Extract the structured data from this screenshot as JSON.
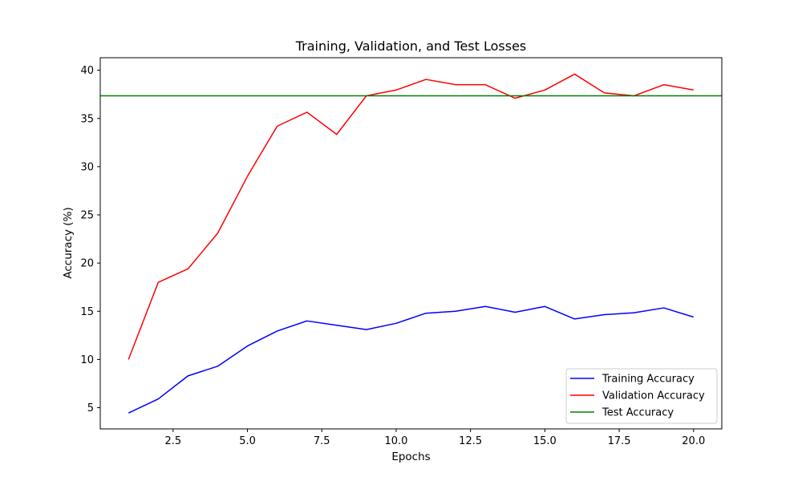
{
  "chart_data": {
    "type": "line",
    "title": "Training, Validation, and Test Losses",
    "xlabel": "Epochs",
    "ylabel": "Accuracy (%)",
    "xlim": [
      0.05,
      20.95
    ],
    "ylim": [
      2.8,
      41.3
    ],
    "x_ticks": [
      2.5,
      5.0,
      7.5,
      10.0,
      12.5,
      15.0,
      17.5,
      20.0
    ],
    "x_tick_labels": [
      "2.5",
      "5.0",
      "7.5",
      "10.0",
      "12.5",
      "15.0",
      "17.5",
      "20.0"
    ],
    "y_ticks": [
      5,
      10,
      15,
      20,
      25,
      30,
      35,
      40
    ],
    "y_tick_labels": [
      "5",
      "10",
      "15",
      "20",
      "25",
      "30",
      "35",
      "40"
    ],
    "grid": false,
    "legend_position": "lower-right",
    "x": [
      1,
      2,
      3,
      4,
      5,
      6,
      7,
      8,
      9,
      10,
      11,
      12,
      13,
      14,
      15,
      16,
      17,
      18,
      19,
      20
    ],
    "series": [
      {
        "name": "Training Accuracy",
        "color": "#0000ff",
        "values": [
          4.45,
          5.9,
          8.3,
          9.3,
          11.4,
          12.95,
          14.0,
          13.55,
          13.1,
          13.75,
          14.8,
          15.0,
          15.5,
          14.9,
          15.5,
          14.2,
          14.65,
          14.85,
          15.35,
          14.4
        ]
      },
      {
        "name": "Validation Accuracy",
        "color": "#ff0000",
        "values": [
          10.0,
          18.0,
          19.4,
          23.1,
          29.0,
          34.2,
          35.65,
          33.35,
          37.35,
          37.95,
          39.05,
          38.5,
          38.5,
          37.1,
          37.95,
          39.6,
          37.65,
          37.35,
          38.5,
          37.95
        ]
      },
      {
        "name": "Test Accuracy",
        "color": "#008000",
        "type": "hline",
        "value": 37.35
      }
    ]
  }
}
